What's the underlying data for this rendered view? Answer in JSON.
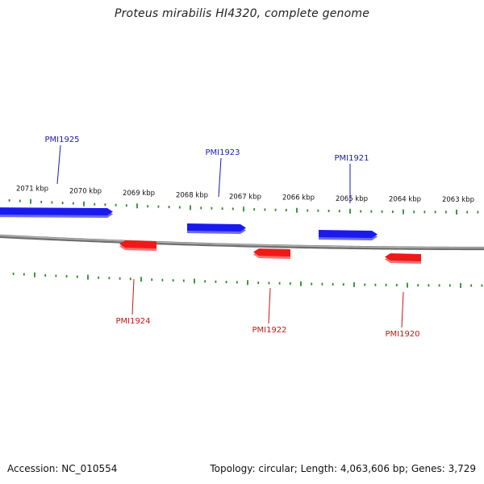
{
  "title": "Proteus mirabilis HI4320, complete genome",
  "footer": {
    "accession": "Accession: NC_010554",
    "summary": "Topology: circular; Length: 4,063,606 bp; Genes: 3,729"
  },
  "colors": {
    "forward_gene": "#1a1aee",
    "reverse_gene": "#ee1a1a",
    "forward_label": "#1a1ab4",
    "reverse_label": "#c81414",
    "ticks": "#2a8a2a",
    "backbone": "#8a8a8a"
  },
  "scale": {
    "labels": [
      "2071 kbp",
      "2070 kbp",
      "2069 kbp",
      "2068 kbp",
      "2067 kbp",
      "2066 kbp",
      "2065 kbp",
      "2064 kbp",
      "2063 kbp"
    ],
    "minor_ticks_between": 4
  },
  "genes": {
    "forward": [
      {
        "name": "PMI1925"
      },
      {
        "name": "PMI1923"
      },
      {
        "name": "PMI1921"
      }
    ],
    "reverse": [
      {
        "name": "PMI1924"
      },
      {
        "name": "PMI1922"
      },
      {
        "name": "PMI1920"
      }
    ]
  }
}
